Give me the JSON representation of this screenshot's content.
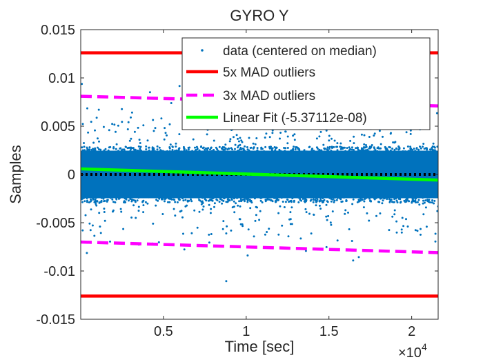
{
  "chart_data": {
    "type": "scatter",
    "title": "GYRO Y",
    "xlabel": "Time [sec]",
    "ylabel": "Samples",
    "x_exponent_label": "×10",
    "x_exponent_power": "4",
    "xlim": [
      0,
      21600
    ],
    "ylim": [
      -0.015,
      0.015
    ],
    "xticks": [
      5000,
      10000,
      15000,
      20000
    ],
    "xtick_labels": [
      "0.5",
      "1",
      "1.5",
      "2"
    ],
    "yticks": [
      -0.015,
      -0.01,
      -0.005,
      0,
      0.005,
      0.01,
      0.015
    ],
    "ytick_labels": [
      "-0.015",
      "-0.01",
      "-0.005",
      "0",
      "0.005",
      "0.01",
      "0.015"
    ],
    "grid": false,
    "legend_position": "top-right",
    "series": [
      {
        "name": "data (centered on median)",
        "kind": "scatter",
        "color": "#0072BD",
        "description_of_distribution": "dense band",
        "core_halfwidth": 0.0029,
        "sigma": 0.0021,
        "n_points": 9000
      },
      {
        "name": "5x MAD outliers",
        "kind": "hline-pair",
        "color": "#FF0000",
        "values": [
          0.0126,
          -0.0126
        ]
      },
      {
        "name": "3x MAD outliers",
        "kind": "dashed-trend-pair",
        "color": "#FF00FF",
        "upper": {
          "x": [
            0,
            21600
          ],
          "y": [
            0.0081,
            0.0071
          ]
        },
        "lower": {
          "x": [
            0,
            21600
          ],
          "y": [
            -0.007,
            -0.0081
          ]
        }
      },
      {
        "name": "Linear Fit (-5.37112e-08)",
        "kind": "line",
        "color": "#00FF00",
        "x": [
          0,
          21600
        ],
        "y": [
          0.00058,
          -0.00058
        ]
      },
      {
        "name": "",
        "kind": "dotted-hline",
        "color": "#000000",
        "values": [
          0
        ]
      }
    ]
  }
}
